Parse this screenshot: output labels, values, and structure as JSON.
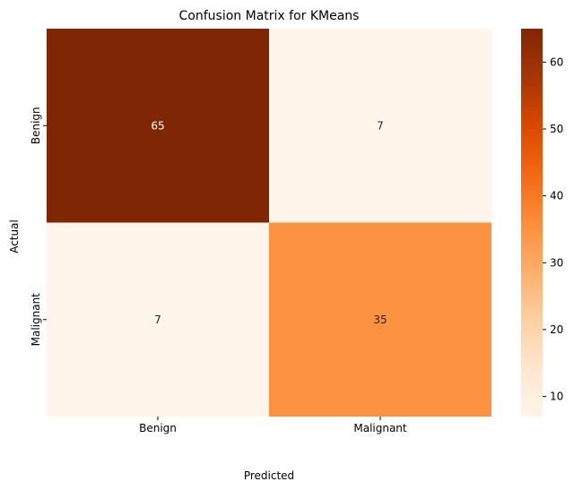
{
  "chart_data": {
    "type": "heatmap",
    "title": "Confusion Matrix for KMeans",
    "xlabel": "Predicted",
    "ylabel": "Actual",
    "x_categories": [
      "Benign",
      "Malignant"
    ],
    "y_categories": [
      "Benign",
      "Malignant"
    ],
    "values": [
      [
        65,
        7
      ],
      [
        7,
        35
      ]
    ],
    "colormap": "Oranges",
    "color_range": [
      7,
      65
    ],
    "colorbar_ticks": [
      10,
      20,
      30,
      40,
      50,
      60
    ],
    "annotations": true
  }
}
